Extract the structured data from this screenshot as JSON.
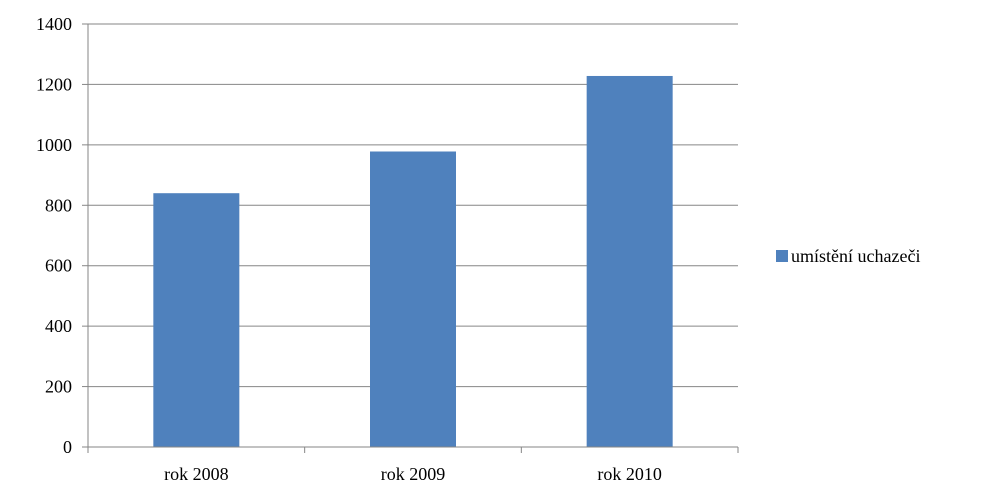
{
  "chart_data": {
    "type": "bar",
    "categories": [
      "rok 2008",
      "rok 2009",
      "rok 2010"
    ],
    "series": [
      {
        "name": "umístění uchazeči",
        "values": [
          840,
          978,
          1228
        ],
        "color": "#4f81bd"
      }
    ],
    "yticks": [
      "0",
      "200",
      "400",
      "600",
      "800",
      "1000",
      "1200",
      "1400"
    ],
    "ylim": [
      0,
      1400
    ],
    "grid": true,
    "legend_position": "right"
  }
}
